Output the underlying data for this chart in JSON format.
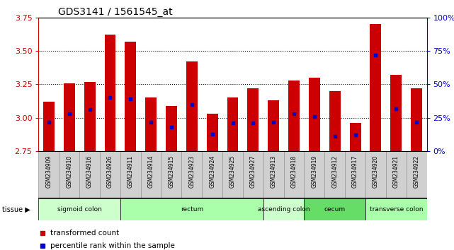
{
  "title": "GDS3141 / 1561545_at",
  "samples": [
    "GSM234909",
    "GSM234910",
    "GSM234916",
    "GSM234926",
    "GSM234911",
    "GSM234914",
    "GSM234915",
    "GSM234923",
    "GSM234924",
    "GSM234925",
    "GSM234927",
    "GSM234913",
    "GSM234918",
    "GSM234919",
    "GSM234912",
    "GSM234917",
    "GSM234920",
    "GSM234921",
    "GSM234922"
  ],
  "bar_top": [
    3.12,
    3.26,
    3.27,
    3.62,
    3.57,
    3.15,
    3.09,
    3.42,
    3.03,
    3.15,
    3.22,
    3.13,
    3.28,
    3.3,
    3.2,
    2.96,
    3.7,
    3.32,
    3.22
  ],
  "bar_bottom": 2.75,
  "blue_pos": [
    2.97,
    3.03,
    3.06,
    3.15,
    3.14,
    2.97,
    2.93,
    3.1,
    2.88,
    2.96,
    2.96,
    2.97,
    3.03,
    3.01,
    2.86,
    2.87,
    3.47,
    3.07,
    2.97
  ],
  "ylim": [
    2.75,
    3.75
  ],
  "y2lim": [
    0,
    100
  ],
  "yticks": [
    2.75,
    3.0,
    3.25,
    3.5,
    3.75
  ],
  "y2ticks": [
    0,
    25,
    50,
    75,
    100
  ],
  "bar_color": "#cc0000",
  "dot_color": "#0000cc",
  "tissue_groups": [
    {
      "label": "sigmoid colon",
      "start": 0,
      "end": 4,
      "color": "#ccffcc"
    },
    {
      "label": "rectum",
      "start": 4,
      "end": 11,
      "color": "#aaffaa"
    },
    {
      "label": "ascending colon",
      "start": 11,
      "end": 13,
      "color": "#ccffcc"
    },
    {
      "label": "cecum",
      "start": 13,
      "end": 16,
      "color": "#66dd66"
    },
    {
      "label": "transverse colon",
      "start": 16,
      "end": 19,
      "color": "#aaffaa"
    }
  ],
  "legend_items": [
    {
      "label": "transformed count",
      "color": "#cc0000"
    },
    {
      "label": "percentile rank within the sample",
      "color": "#0000cc"
    }
  ],
  "bar_width": 0.55,
  "left_color": "#cc0000",
  "right_color": "#0000cc",
  "xtick_bg": "#d0d0d0"
}
